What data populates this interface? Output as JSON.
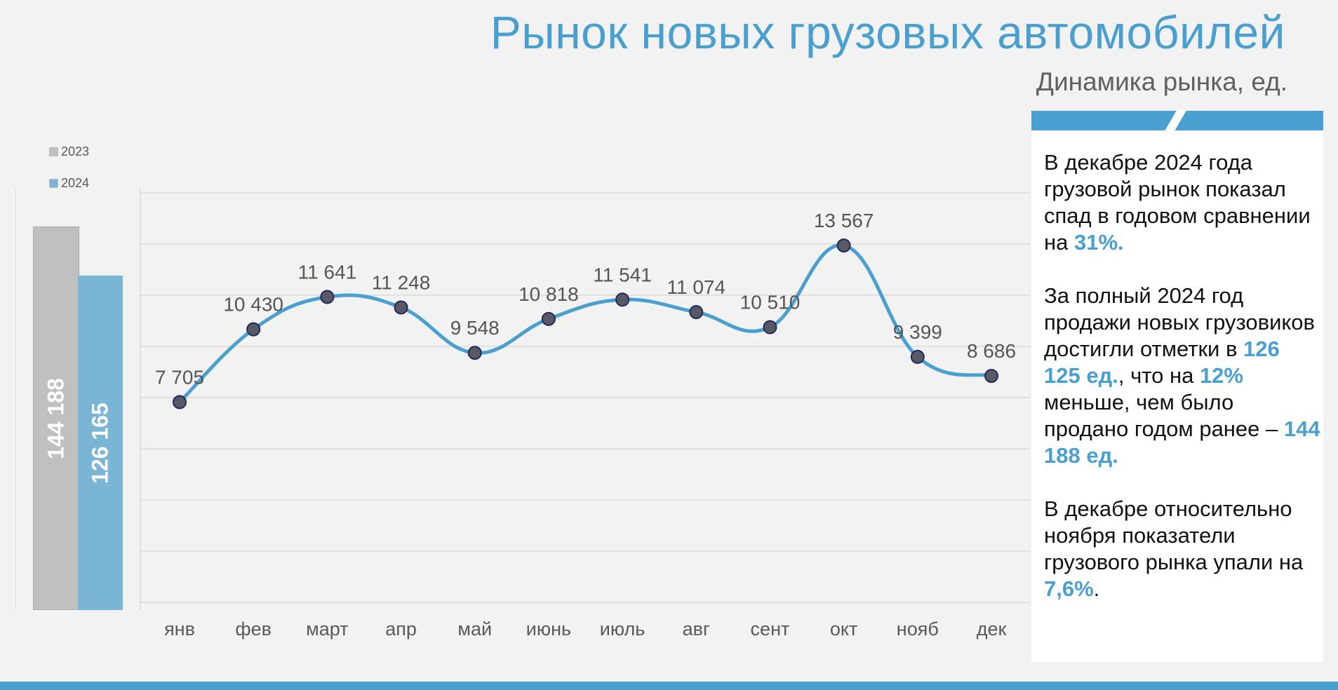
{
  "header": {
    "title": "Рынок новых грузовых автомобилей",
    "subtitle": "Динамика рынка, ед."
  },
  "colors": {
    "accent": "#4a9fd1",
    "bar_2023": "#c0c0c0",
    "bar_2024": "#7ab5d6",
    "marker": "#595966",
    "grid": "#d9d9d9"
  },
  "annual": {
    "legend": [
      {
        "name": "2023",
        "color": "#c0c0c0"
      },
      {
        "name": "2024",
        "color": "#7ab5d6"
      }
    ],
    "bars": [
      {
        "year": "2023",
        "value": 144188,
        "label": "144 188"
      },
      {
        "year": "2024",
        "value": 126165,
        "label": "126 165"
      }
    ],
    "ymax": 144188
  },
  "chart_data": {
    "type": "line",
    "title": "Динамика рынка, ед.",
    "categories": [
      "янв",
      "фев",
      "март",
      "апр",
      "май",
      "июнь",
      "июль",
      "авг",
      "сент",
      "окт",
      "нояб",
      "дек"
    ],
    "series": [
      {
        "values": [
          7705,
          10430,
          11641,
          11248,
          9548,
          10818,
          11541,
          11074,
          10510,
          13567,
          9399,
          8686
        ],
        "labels": [
          "7 705",
          "10 430",
          "11 641",
          "11 248",
          "9 548",
          "10 818",
          "11 541",
          "11 074",
          "10 510",
          "13 567",
          "9 399",
          "8 686"
        ]
      }
    ],
    "grid": true,
    "smooth": true
  },
  "info": {
    "p1_text": "В декабре 2024 года грузовой рынок показал спад в годовом сравнении на ",
    "p1_highlight": "31%.",
    "p2_text_a": "За полный 2024 год продажи новых грузовиков достигли отметки в ",
    "p2_highlight_a": "126 125 ед.",
    "p2_text_b": ", что на ",
    "p2_highlight_b": "12%",
    "p2_text_c": " меньше, чем было продано годом ранее – ",
    "p2_highlight_c": "144 188 ед.",
    "p3_text": "В декабре относительно ноября показатели грузового рынка упали на ",
    "p3_highlight": "7,6%",
    "p3_end": "."
  }
}
